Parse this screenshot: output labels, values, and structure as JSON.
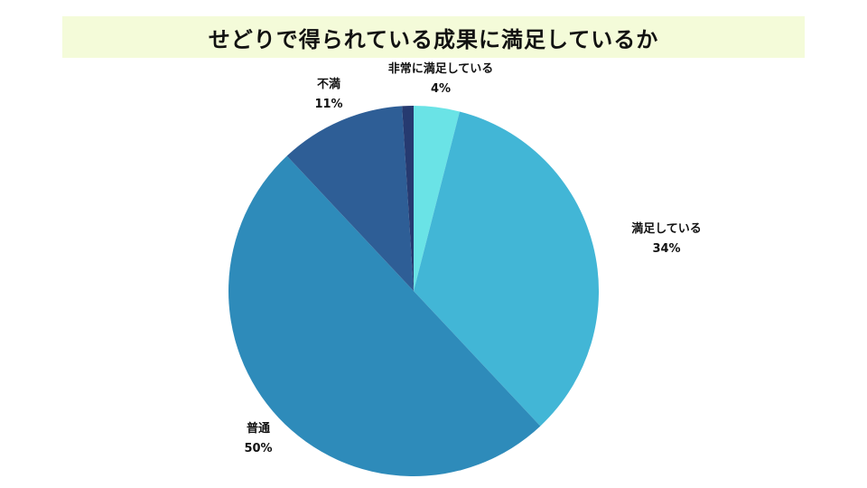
{
  "chart_data": {
    "type": "pie",
    "title": "せどりで得られている成果に満足しているか",
    "categories": [
      "非常に満足している",
      "満足している",
      "普通",
      "不満",
      ""
    ],
    "values": [
      4,
      34,
      50,
      11,
      1
    ],
    "labels": [
      "4%",
      "34%",
      "50%",
      "11%",
      ""
    ],
    "colors": [
      "#6ae3e6",
      "#42b6d6",
      "#2e8bba",
      "#2e5e96",
      "#263a70"
    ],
    "legend": "none"
  }
}
